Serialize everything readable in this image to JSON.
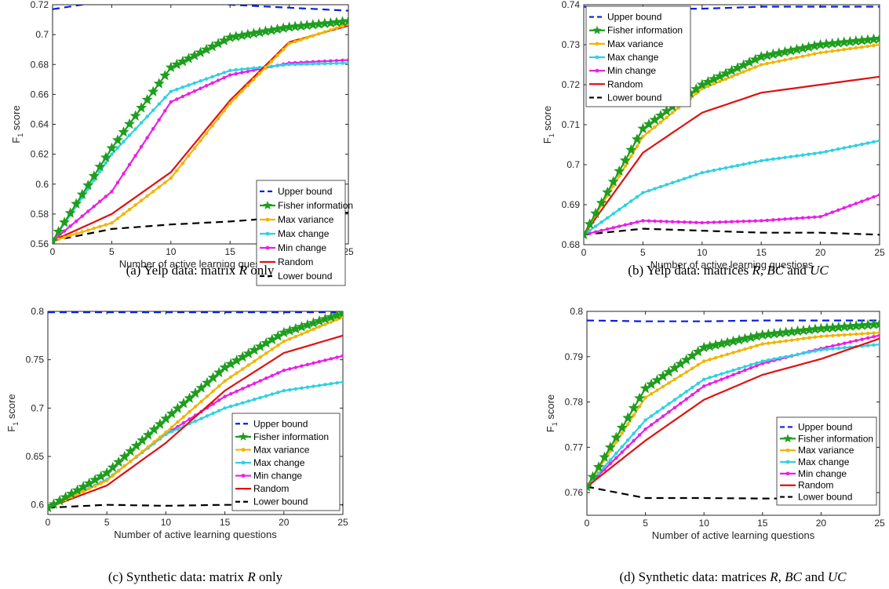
{
  "colors": {
    "Upper bound": "#0a1fe0",
    "Fisher information": "#1e9e1e",
    "Max variance": "#f2b400",
    "Max change": "#2ed1e0",
    "Min change": "#ea1ee6",
    "Random": "#e01010",
    "Lower bound": "#000000"
  },
  "ylabel_main": "F",
  "ylabel_sub": "1",
  "ylabel_rest": " score",
  "chart_data": [
    {
      "id": "a",
      "type": "line",
      "caption_prefix": "(a)  Yelp data: matrix ",
      "caption_math": "R",
      "caption_suffix": " only",
      "xlabel": "Number of active learning questions",
      "ylabel": "F1 score",
      "xlim": [
        0,
        25
      ],
      "ylim": [
        0.56,
        0.72
      ],
      "xticks": [
        0,
        5,
        10,
        15,
        20,
        25
      ],
      "yticks": [
        0.56,
        0.58,
        0.6,
        0.62,
        0.64,
        0.66,
        0.68,
        0.7,
        0.72
      ],
      "ytick_labels": [
        "0.56",
        "0.58",
        "0.6",
        "0.62",
        "0.64",
        "0.66",
        "0.68",
        "0.7",
        "0.72"
      ],
      "legend_position": "center-right",
      "x": [
        0,
        5,
        10,
        15,
        20,
        25
      ],
      "series": [
        {
          "name": "Upper bound",
          "style": "dashed",
          "values": [
            0.717,
            0.723,
            0.722,
            0.72,
            0.718,
            0.716
          ]
        },
        {
          "name": "Fisher information",
          "style": "star",
          "values": [
            0.562,
            0.624,
            0.678,
            0.698,
            0.705,
            0.709
          ]
        },
        {
          "name": "Max variance",
          "style": "dot",
          "values": [
            0.562,
            0.574,
            0.604,
            0.654,
            0.694,
            0.707
          ]
        },
        {
          "name": "Max change",
          "style": "dot",
          "values": [
            0.562,
            0.62,
            0.662,
            0.676,
            0.68,
            0.681
          ]
        },
        {
          "name": "Min change",
          "style": "dot",
          "values": [
            0.562,
            0.595,
            0.655,
            0.673,
            0.681,
            0.683
          ]
        },
        {
          "name": "Random",
          "style": "solid",
          "values": [
            0.562,
            0.58,
            0.608,
            0.656,
            0.695,
            0.706
          ]
        },
        {
          "name": "Lower bound",
          "style": "dashed",
          "values": [
            0.562,
            0.57,
            0.573,
            0.575,
            0.578,
            0.581
          ]
        }
      ]
    },
    {
      "id": "b",
      "type": "line",
      "caption_prefix": "(b)  Yelp data: matrices ",
      "caption_math": "R, BC",
      "caption_mid": " and ",
      "caption_math2": "UC",
      "caption_suffix": "",
      "xlabel": "Number of active learning questions",
      "ylabel": "F1 score",
      "xlim": [
        0,
        25
      ],
      "ylim": [
        0.68,
        0.74
      ],
      "xticks": [
        0,
        5,
        10,
        15,
        20,
        25
      ],
      "yticks": [
        0.68,
        0.69,
        0.7,
        0.71,
        0.72,
        0.73,
        0.74
      ],
      "ytick_labels": [
        "0.68",
        "0.69",
        "0.7",
        "0.71",
        "0.72",
        "0.73",
        "0.74"
      ],
      "legend_position": "top-left",
      "x": [
        0,
        5,
        10,
        15,
        20,
        25
      ],
      "series": [
        {
          "name": "Upper bound",
          "style": "dashed",
          "values": [
            0.7395,
            0.739,
            0.739,
            0.7395,
            0.7395,
            0.7395
          ]
        },
        {
          "name": "Fisher information",
          "style": "star",
          "values": [
            0.6825,
            0.709,
            0.72,
            0.727,
            0.73,
            0.7315
          ]
        },
        {
          "name": "Max variance",
          "style": "dot",
          "values": [
            0.6825,
            0.707,
            0.719,
            0.725,
            0.728,
            0.73
          ]
        },
        {
          "name": "Max change",
          "style": "dot",
          "values": [
            0.6825,
            0.693,
            0.698,
            0.701,
            0.703,
            0.706
          ]
        },
        {
          "name": "Min change",
          "style": "dot",
          "values": [
            0.6825,
            0.686,
            0.6855,
            0.686,
            0.687,
            0.6925
          ]
        },
        {
          "name": "Random",
          "style": "solid",
          "values": [
            0.6825,
            0.703,
            0.713,
            0.718,
            0.72,
            0.722
          ]
        },
        {
          "name": "Lower bound",
          "style": "dashed",
          "values": [
            0.6825,
            0.684,
            0.6835,
            0.683,
            0.683,
            0.6825
          ]
        }
      ]
    },
    {
      "id": "c",
      "type": "line",
      "caption_prefix": "(c)  Synthetic data: matrix ",
      "caption_math": "R",
      "caption_suffix": " only",
      "xlabel": "Number of active learning questions",
      "ylabel": "F1 score",
      "xlim": [
        0,
        25
      ],
      "ylim": [
        0.59,
        0.8
      ],
      "xticks": [
        0,
        5,
        10,
        15,
        20,
        25
      ],
      "yticks": [
        0.6,
        0.65,
        0.7,
        0.75,
        0.8
      ],
      "ytick_labels": [
        "0.6",
        "0.65",
        "0.7",
        "0.75",
        "0.8"
      ],
      "legend_position": "center-right",
      "x": [
        0,
        5,
        10,
        15,
        20,
        25
      ],
      "series": [
        {
          "name": "Upper bound",
          "style": "dashed",
          "values": [
            0.799,
            0.799,
            0.799,
            0.799,
            0.799,
            0.799
          ]
        },
        {
          "name": "Fisher information",
          "style": "star",
          "values": [
            0.597,
            0.633,
            0.689,
            0.742,
            0.778,
            0.798
          ]
        },
        {
          "name": "Max variance",
          "style": "dot",
          "values": [
            0.597,
            0.625,
            0.675,
            0.728,
            0.769,
            0.794
          ]
        },
        {
          "name": "Max change",
          "style": "dot",
          "values": [
            0.597,
            0.626,
            0.673,
            0.7,
            0.718,
            0.727
          ]
        },
        {
          "name": "Min change",
          "style": "dot",
          "values": [
            0.597,
            0.626,
            0.673,
            0.712,
            0.739,
            0.754
          ]
        },
        {
          "name": "Random",
          "style": "solid",
          "values": [
            0.597,
            0.62,
            0.664,
            0.718,
            0.757,
            0.775
          ]
        },
        {
          "name": "Lower bound",
          "style": "dashed",
          "values": [
            0.597,
            0.6,
            0.599,
            0.6,
            0.6,
            0.6
          ]
        }
      ]
    },
    {
      "id": "d",
      "type": "line",
      "caption_prefix": "(d)  Synthetic data: matrices ",
      "caption_math": "R, BC",
      "caption_mid": " and ",
      "caption_math2": "UC",
      "caption_suffix": "",
      "xlabel": "Number of active learning questions",
      "ylabel": "F1 score",
      "xlim": [
        0,
        25
      ],
      "ylim": [
        0.755,
        0.8
      ],
      "xticks": [
        0,
        5,
        10,
        15,
        20,
        25
      ],
      "yticks": [
        0.76,
        0.77,
        0.78,
        0.79,
        0.8
      ],
      "ytick_labels": [
        "0.76",
        "0.77",
        "0.78",
        "0.79",
        "0.8"
      ],
      "legend_position": "bottom-right",
      "x": [
        0,
        5,
        10,
        15,
        20,
        25
      ],
      "series": [
        {
          "name": "Upper bound",
          "style": "dashed",
          "values": [
            0.798,
            0.7978,
            0.7978,
            0.798,
            0.798,
            0.798
          ]
        },
        {
          "name": "Fisher information",
          "style": "star",
          "values": [
            0.7613,
            0.783,
            0.792,
            0.7948,
            0.7962,
            0.7972
          ]
        },
        {
          "name": "Max variance",
          "style": "dot",
          "values": [
            0.7613,
            0.781,
            0.789,
            0.7928,
            0.7945,
            0.7953
          ]
        },
        {
          "name": "Max change",
          "style": "dot",
          "values": [
            0.7613,
            0.776,
            0.785,
            0.789,
            0.7915,
            0.7927
          ]
        },
        {
          "name": "Min change",
          "style": "dot",
          "values": [
            0.7613,
            0.774,
            0.7835,
            0.7885,
            0.7918,
            0.7947
          ]
        },
        {
          "name": "Random",
          "style": "solid",
          "values": [
            0.7613,
            0.7715,
            0.7805,
            0.786,
            0.7895,
            0.794
          ]
        },
        {
          "name": "Lower bound",
          "style": "dashed",
          "values": [
            0.7613,
            0.7588,
            0.7588,
            0.7587,
            0.7587,
            0.759
          ]
        }
      ]
    }
  ]
}
